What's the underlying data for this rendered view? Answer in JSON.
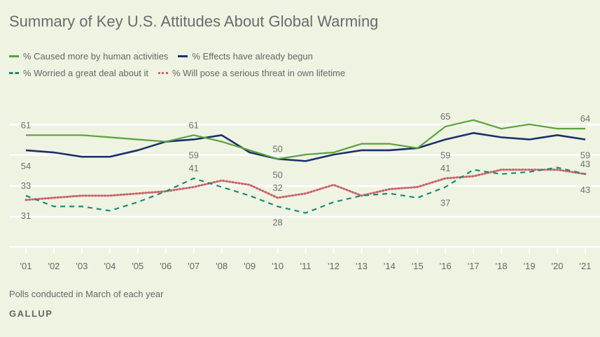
{
  "chart_data": {
    "type": "line",
    "title": "Summary of Key U.S. Attitudes About Global Warming",
    "categories": [
      "'01",
      "'02",
      "'03",
      "'04",
      "'05",
      "'06",
      "'07",
      "'08",
      "'09",
      "'10",
      "'11",
      "'12",
      "'13",
      "'14",
      "'15",
      "'16",
      "'17",
      "'18",
      "'19",
      "'20",
      "'21"
    ],
    "grid": true,
    "legend": "top-left",
    "series": [
      {
        "name": "% Caused more by human activities",
        "color": "#5aa23a",
        "style": "solid",
        "values": [
          61,
          61,
          61,
          60,
          59,
          58,
          61,
          58,
          54,
          50,
          52,
          53,
          57,
          57,
          55,
          65,
          68,
          64,
          66,
          64,
          64
        ]
      },
      {
        "name": "% Effects have already begun",
        "color": "#1b2f6b",
        "style": "solid",
        "values": [
          54,
          53,
          51,
          51,
          54,
          58,
          59,
          61,
          53,
          50,
          49,
          52,
          54,
          54,
          55,
          59,
          62,
          60,
          59,
          61,
          59
        ]
      },
      {
        "name": "% Worried a great deal about it",
        "color": "#1f8a72",
        "style": "dashed",
        "values": [
          33,
          28,
          28,
          26,
          30,
          35,
          41,
          37,
          33,
          28,
          25,
          30,
          33,
          34,
          32,
          37,
          45,
          43,
          44,
          46,
          43
        ]
      },
      {
        "name": "% Will pose a serious threat in own lifetime",
        "color": "#c9636a",
        "style": "dotted",
        "values": [
          31,
          32,
          33,
          33,
          34,
          35,
          37,
          40,
          38,
          32,
          34,
          38,
          33,
          36,
          37,
          41,
          42,
          45,
          45,
          45,
          43
        ]
      }
    ],
    "data_labels": [
      {
        "series": 0,
        "index": 0,
        "text": "61",
        "pos": "above"
      },
      {
        "series": 1,
        "index": 0,
        "text": "54",
        "pos": "below"
      },
      {
        "series": 2,
        "index": 0,
        "text": "33",
        "pos": "above"
      },
      {
        "series": 3,
        "index": 0,
        "text": "31",
        "pos": "below"
      },
      {
        "series": 0,
        "index": 6,
        "text": "61",
        "pos": "above"
      },
      {
        "series": 1,
        "index": 6,
        "text": "59",
        "pos": "below"
      },
      {
        "series": 2,
        "index": 6,
        "text": "41",
        "pos": "above"
      },
      {
        "series": 0,
        "index": 9,
        "text": "50",
        "pos": "above"
      },
      {
        "series": 1,
        "index": 9,
        "text": "50",
        "pos": "below"
      },
      {
        "series": 3,
        "index": 9,
        "text": "32",
        "pos": "above"
      },
      {
        "series": 2,
        "index": 9,
        "text": "28",
        "pos": "below"
      },
      {
        "series": 0,
        "index": 15,
        "text": "65",
        "pos": "above"
      },
      {
        "series": 1,
        "index": 15,
        "text": "59",
        "pos": "below"
      },
      {
        "series": 3,
        "index": 15,
        "text": "41",
        "pos": "above"
      },
      {
        "series": 2,
        "index": 15,
        "text": "37",
        "pos": "below"
      },
      {
        "series": 0,
        "index": 20,
        "text": "64",
        "pos": "above"
      },
      {
        "series": 1,
        "index": 20,
        "text": "59",
        "pos": "below"
      },
      {
        "series": 3,
        "index": 20,
        "text": "43",
        "pos": "above"
      },
      {
        "series": 2,
        "index": 20,
        "text": "43",
        "pos": "below"
      }
    ]
  },
  "footer": {
    "note": "Polls conducted in March of each year",
    "brand": "GALLUP"
  },
  "colors": {
    "background": "#eef3e2",
    "gridline": "#ffffff",
    "label_text": "#666666"
  }
}
